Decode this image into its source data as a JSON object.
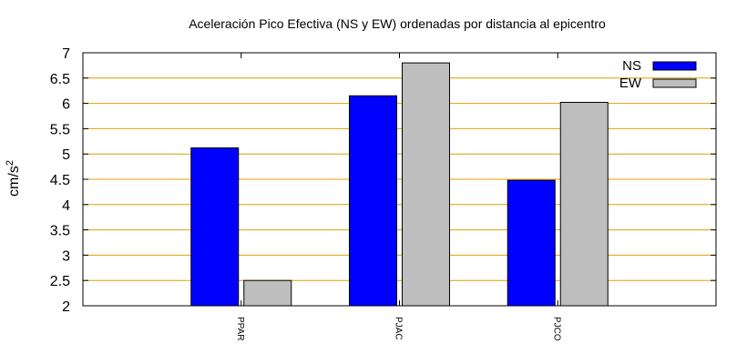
{
  "chart_data": {
    "type": "bar",
    "title": "Aceleración Pico Efectiva (NS y EW) ordenadas por distancia al epicentro",
    "xlabel": "",
    "ylabel": "cm/s",
    "ylabel_superscript": "2",
    "categories": [
      "PPAR",
      "PJAC",
      "PJCO"
    ],
    "series": [
      {
        "name": "NS",
        "color": "#0000ff",
        "values": [
          5.12,
          6.15,
          4.48
        ]
      },
      {
        "name": "EW",
        "color": "#bebebe",
        "values": [
          2.5,
          6.8,
          6.02
        ]
      }
    ],
    "ylim": [
      2,
      7
    ],
    "yticks": [
      "2",
      "2.5",
      "3",
      "3.5",
      "4",
      "4.5",
      "5",
      "5.5",
      "6",
      "6.5",
      "7"
    ],
    "grid": true,
    "grid_color": "#e0a000",
    "legend_position": "top-right"
  }
}
